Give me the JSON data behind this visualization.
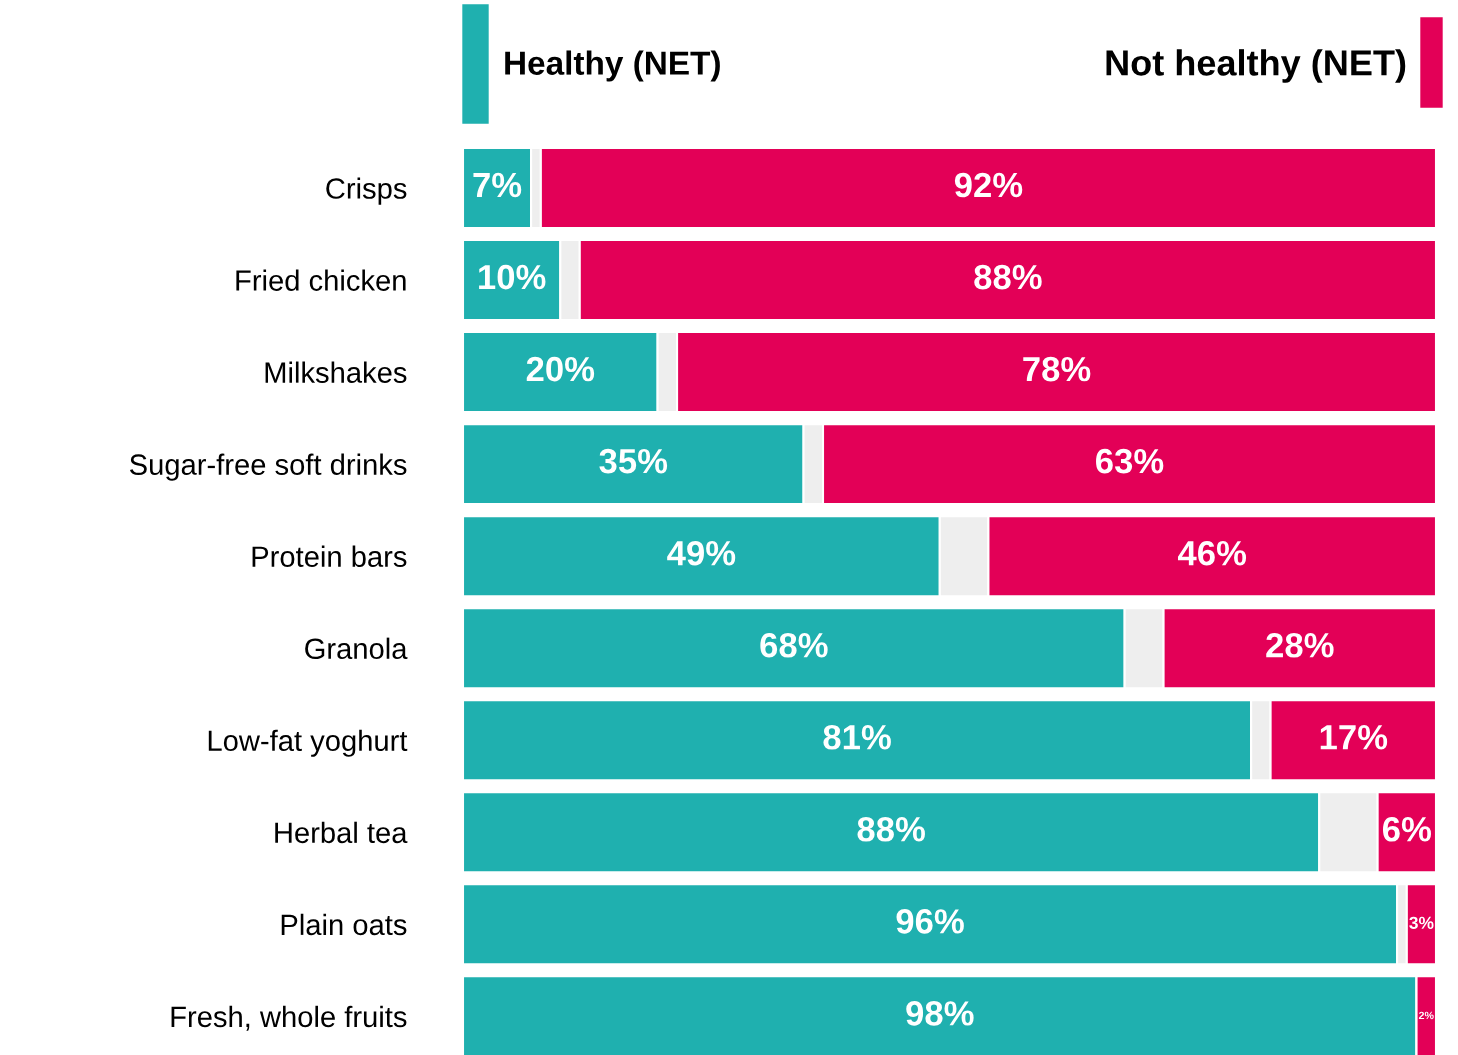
{
  "chart_data": {
    "type": "bar",
    "orientation": "horizontal",
    "stacked": true,
    "legend": "top",
    "xlim": [
      0,
      100
    ],
    "tick_labels": "y",
    "categories": [
      "Crisps",
      "Fried chicken",
      "Milkshakes",
      "Sugar-free soft drinks",
      "Protein bars",
      "Granola",
      "Low-fat yoghurt",
      "Herbal tea",
      "Plain oats",
      "Fresh, whole fruits"
    ],
    "series": [
      {
        "name": "Healthy (NET)",
        "color": "#1fb0af",
        "values": [
          7,
          10,
          20,
          35,
          49,
          68,
          81,
          88,
          96,
          98
        ],
        "value_labels": [
          "7%",
          "10%",
          "20%",
          "35%",
          "49%",
          "68%",
          "81%",
          "88%",
          "96%",
          "98%"
        ]
      },
      {
        "color": "#eeeeee",
        "values": [
          1,
          2,
          2,
          2,
          5,
          4,
          2,
          6,
          1,
          0
        ]
      },
      {
        "name": "Not healthy (NET)",
        "color": "#e30057",
        "values": [
          92,
          88,
          78,
          63,
          46,
          28,
          17,
          6,
          3,
          2
        ],
        "value_labels": [
          "92%",
          "88%",
          "78%",
          "63%",
          "46%",
          "28%",
          "17%",
          "6%",
          "3%",
          "2%"
        ]
      }
    ]
  }
}
